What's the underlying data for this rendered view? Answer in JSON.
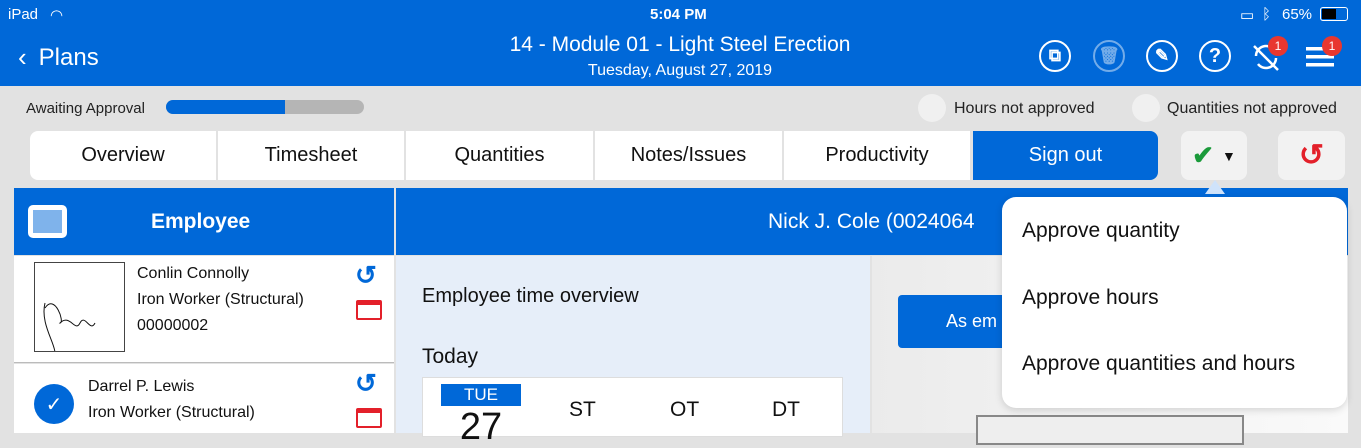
{
  "status_bar": {
    "device": "iPad",
    "time": "5:04 PM",
    "battery": "65%"
  },
  "header": {
    "back_label": "Plans",
    "title": "14 - Module 01 - Light Steel Erection",
    "subtitle": "Tuesday, August 27, 2019",
    "sync_badge": "1",
    "menu_badge": "1"
  },
  "status_row": {
    "label": "Awaiting Approval",
    "progress": 0.6,
    "legend": [
      "Hours not approved",
      "Quantities not approved"
    ]
  },
  "tabs": [
    "Overview",
    "Timesheet",
    "Quantities",
    "Notes/Issues",
    "Productivity",
    "Sign out"
  ],
  "employees_panel": {
    "title": "Employee",
    "employees": [
      {
        "name": "Conlin Connolly",
        "role": "Iron Worker (Structural)",
        "id": "00000002"
      },
      {
        "name": "Darrel P. Lewis",
        "role": "Iron Worker (Structural)"
      }
    ]
  },
  "detail": {
    "header": "Nick J. Cole (0024064",
    "overview_title": "Employee time overview",
    "today_label": "Today",
    "day": "TUE",
    "date": "27",
    "columns": [
      "ST",
      "OT",
      "DT"
    ],
    "button": "As em"
  },
  "dropdown": {
    "items": [
      "Approve quantity",
      "Approve hours",
      "Approve quantities and hours"
    ]
  },
  "colors": {
    "brand": "#0068d8",
    "approve": "#1a9a3a",
    "undo": "#e3202a"
  }
}
